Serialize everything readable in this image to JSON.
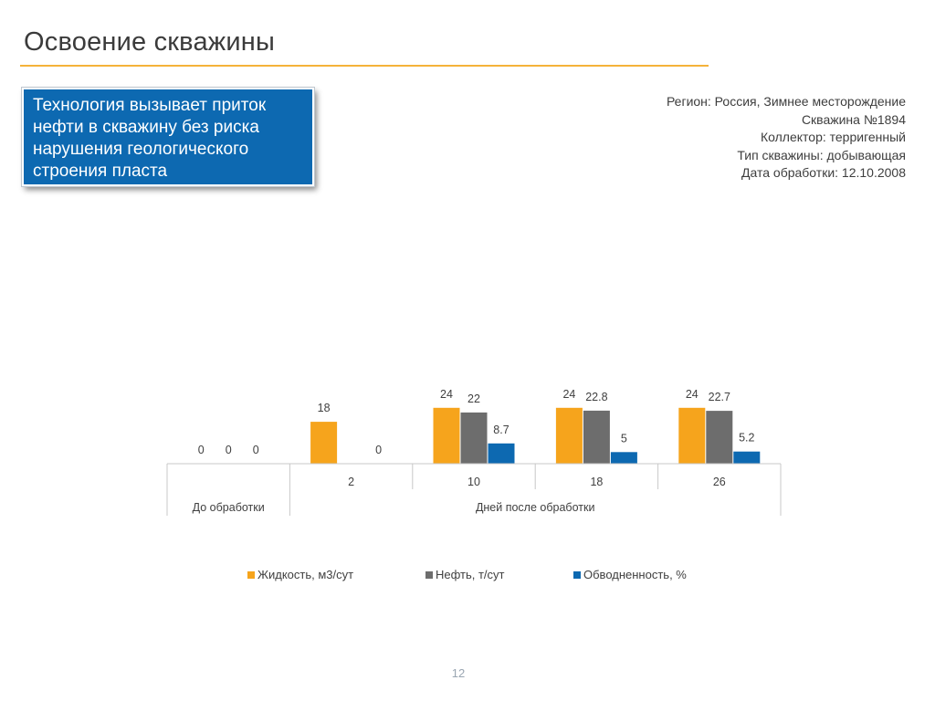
{
  "slide": {
    "title": "Освоение скважины",
    "callout": "Технология вызывает приток нефти в скважину без риска нарушения геологического строения пласта",
    "page_number": "12"
  },
  "well_info": [
    "Регион: Россия, Зимнее месторождение",
    "Скважина  №1894",
    "Коллектор: терригенный",
    "Тип скважины: добывающая",
    "Дата обработки: 12.10.2008"
  ],
  "colors": {
    "accent_rule": "#f5b23a",
    "callout_bg": "#0d69b1"
  },
  "chart_data": {
    "type": "bar",
    "categories": [
      "",
      "2",
      "10",
      "18",
      "26"
    ],
    "category_groups": [
      {
        "label": "До обработки",
        "categories": [
          ""
        ]
      },
      {
        "label": "Дней после обработки",
        "categories": [
          "2",
          "10",
          "18",
          "26"
        ]
      }
    ],
    "series": [
      {
        "name": "Жидкость, м3/сут",
        "color": "#f6a41c",
        "values": [
          0,
          18,
          24,
          24,
          24
        ]
      },
      {
        "name": "Нефть, т/сут",
        "color": "#6d6d6d",
        "values": [
          0,
          null,
          22,
          22.8,
          22.7
        ]
      },
      {
        "name": "Обводненность, %",
        "color": "#0d69b1",
        "values": [
          0,
          0,
          8.7,
          5,
          5.2
        ]
      }
    ],
    "ylim": [
      0,
      100
    ],
    "grid": false,
    "legend_position": "bottom"
  }
}
